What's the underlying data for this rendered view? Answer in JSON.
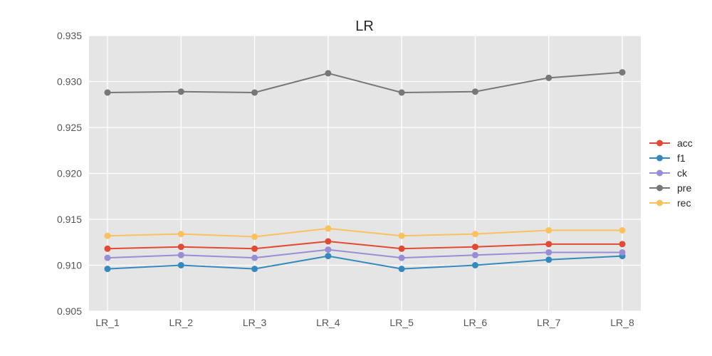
{
  "chart_data": {
    "type": "line",
    "title": "LR",
    "xlabel": "",
    "ylabel": "",
    "categories": [
      "LR_1",
      "LR_2",
      "LR_3",
      "LR_4",
      "LR_5",
      "LR_6",
      "LR_7",
      "LR_8"
    ],
    "ylim": [
      0.905,
      0.935
    ],
    "yticks": [
      "0.905",
      "0.910",
      "0.915",
      "0.920",
      "0.925",
      "0.930",
      "0.935"
    ],
    "grid": true,
    "legend_position": "right",
    "background": "#e5e5e5",
    "series": [
      {
        "name": "acc",
        "color": "#e24a33",
        "values": [
          0.9118,
          0.912,
          0.9118,
          0.9126,
          0.9118,
          0.912,
          0.9123,
          0.9123
        ]
      },
      {
        "name": "f1",
        "color": "#348abd",
        "values": [
          0.9096,
          0.91,
          0.9096,
          0.911,
          0.9096,
          0.91,
          0.9106,
          0.911
        ]
      },
      {
        "name": "ck",
        "color": "#988ed5",
        "values": [
          0.9108,
          0.9111,
          0.9108,
          0.9117,
          0.9108,
          0.9111,
          0.9114,
          0.9114
        ]
      },
      {
        "name": "pre",
        "color": "#777777",
        "values": [
          0.9288,
          0.9289,
          0.9288,
          0.9309,
          0.9288,
          0.9289,
          0.9304,
          0.931
        ]
      },
      {
        "name": "rec",
        "color": "#fbc15e",
        "values": [
          0.9132,
          0.9134,
          0.9131,
          0.914,
          0.9132,
          0.9134,
          0.9138,
          0.9138
        ]
      }
    ]
  }
}
